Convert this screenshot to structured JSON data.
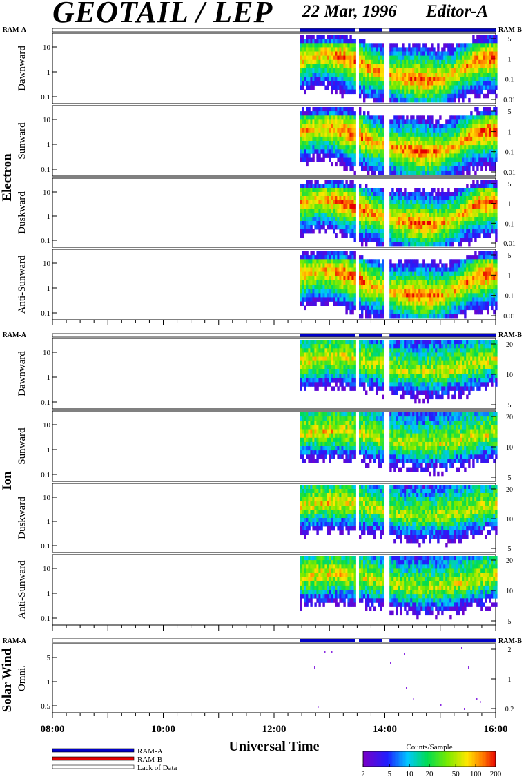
{
  "header": {
    "title": "GEOTAIL / LEP",
    "date": "22 Mar, 1996",
    "editor": "Editor-A"
  },
  "chart_data": {
    "type": "heatmap",
    "xlabel": "Universal Time",
    "x_ticks": [
      "08:00",
      "10:00",
      "12:00",
      "14:00",
      "16:00"
    ],
    "xlim": [
      "08:00",
      "16:00"
    ],
    "data_segments": [
      [
        "12:28",
        "13:28"
      ],
      [
        "13:32",
        "13:57"
      ],
      [
        "14:05",
        "16:00"
      ]
    ],
    "groups": [
      {
        "name": "Electron",
        "ram_a_label": "RAM-A",
        "ram_b_label": "RAM-B",
        "panels": [
          {
            "name": "Dawnward",
            "left_ticks": [
              "10",
              "1",
              "0.1"
            ],
            "right_ticks": [
              "5",
              "1",
              "0.1",
              "0.01"
            ]
          },
          {
            "name": "Sunward",
            "left_ticks": [
              "10",
              "1",
              "0.1"
            ],
            "right_ticks": [
              "5",
              "1",
              "0.1",
              "0.01"
            ]
          },
          {
            "name": "Duskward",
            "left_ticks": [
              "10",
              "1",
              "0.1"
            ],
            "right_ticks": [
              "5",
              "1",
              "0.1",
              "0.01"
            ]
          },
          {
            "name": "Anti-Sunward",
            "left_ticks": [
              "10",
              "1",
              "0.1"
            ],
            "right_ticks": [
              "5",
              "1",
              "0.1",
              "0.01"
            ]
          }
        ]
      },
      {
        "name": "Ion",
        "ram_a_label": "RAM-A",
        "ram_b_label": "RAM-B",
        "panels": [
          {
            "name": "Dawnward",
            "left_ticks": [
              "10",
              "1",
              "0.1"
            ],
            "right_ticks": [
              "20",
              "10",
              "5"
            ]
          },
          {
            "name": "Sunward",
            "left_ticks": [
              "10",
              "1",
              "0.1"
            ],
            "right_ticks": [
              "20",
              "10",
              "5"
            ]
          },
          {
            "name": "Duskward",
            "left_ticks": [
              "10",
              "1",
              "0.1"
            ],
            "right_ticks": [
              "20",
              "10",
              "5"
            ]
          },
          {
            "name": "Anti-Sunward",
            "left_ticks": [
              "10",
              "1",
              "0.1"
            ],
            "right_ticks": [
              "20",
              "10",
              "5"
            ]
          }
        ]
      },
      {
        "name": "Solar Wind",
        "ram_a_label": "RAM-A",
        "ram_b_label": "RAM-B",
        "panels": [
          {
            "name": "Omni.",
            "left_ticks": [
              "5",
              "1",
              "0.5"
            ],
            "right_ticks": [
              "2",
              "1",
              "0.2"
            ]
          }
        ]
      }
    ],
    "legend": {
      "items": [
        {
          "label": "RAM-A",
          "color": "#0000c8"
        },
        {
          "label": "RAM-B",
          "color": "#e00000"
        },
        {
          "label": "Lack of Data",
          "color": "#ffffff"
        }
      ]
    },
    "colorbar": {
      "title": "Counts/Sample",
      "ticks": [
        "2",
        "5",
        "10",
        "20",
        "50",
        "100",
        "200"
      ],
      "range": [
        2,
        200
      ],
      "scale": "log"
    }
  }
}
